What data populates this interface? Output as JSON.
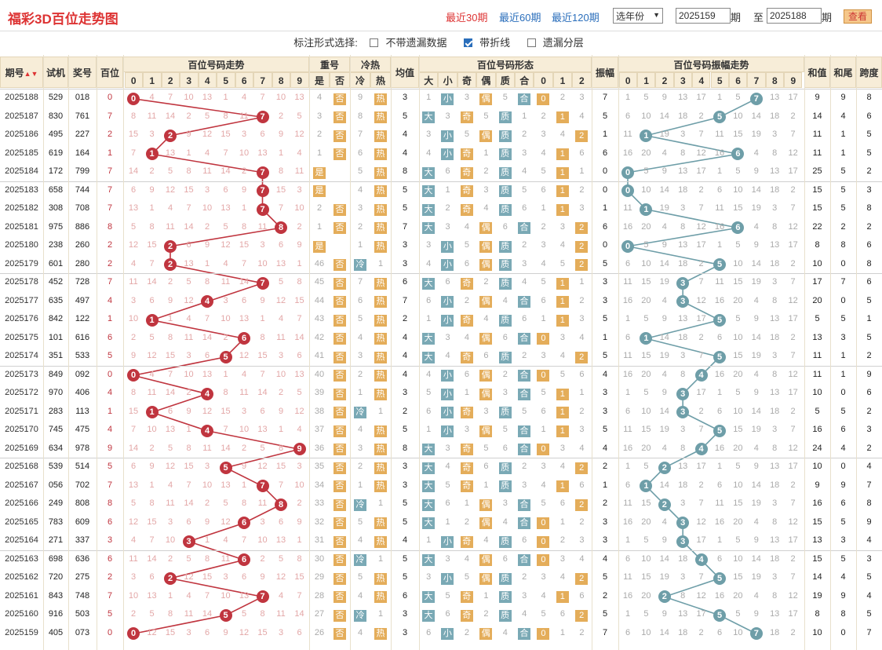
{
  "header": {
    "title": "福彩3D百位走势图",
    "links": [
      "最近30期",
      "最近60期",
      "最近120期"
    ],
    "year_select": "选年份",
    "from_value": "2025159",
    "qi_label_1": "期",
    "to_label": "至",
    "to_value": "2025188",
    "qi_label_2": "期",
    "view_button": "查看"
  },
  "options": {
    "label": "标注形式选择:",
    "items": [
      {
        "label": "不带遗漏数据",
        "checked": false
      },
      {
        "label": "带折线",
        "checked": true
      },
      {
        "label": "遗漏分层",
        "checked": false
      }
    ]
  },
  "table": {
    "headers": {
      "issue": "期号",
      "sim": "试机",
      "prize": "奖号",
      "hundred": "百位",
      "trend": "百位号码走势",
      "repeat": "重号",
      "repeat_sub": [
        "是",
        "否"
      ],
      "coldhot": "冷热",
      "coldhot_sub": [
        "冷",
        "热"
      ],
      "avg": "均值",
      "form": "百位号码形态",
      "form_sub": [
        "大",
        "小",
        "奇",
        "偶",
        "质",
        "合",
        "0",
        "1",
        "2"
      ],
      "amp": "振幅",
      "amp_trend": "百位号码振幅走势",
      "digits": [
        "0",
        "1",
        "2",
        "3",
        "4",
        "5",
        "6",
        "7",
        "8",
        "9"
      ],
      "sum": "和值",
      "tail": "和尾",
      "span": "跨度"
    },
    "rows": [
      {
        "issue": "2025188",
        "sim": "529",
        "prize": "018",
        "h": 0,
        "rep": "4",
        "cold": "9",
        "avg": "3",
        "big": 0,
        "odd": 0,
        "prime": 0,
        "road": 0,
        "amp": 7,
        "sum": "9",
        "tail": "9",
        "span": "8"
      },
      {
        "issue": "2025187",
        "sim": "830",
        "prize": "761",
        "h": 7,
        "rep": "3",
        "cold": "8",
        "avg": "5",
        "big": 1,
        "odd": 1,
        "prime": 1,
        "road": 1,
        "amp": 5,
        "sum": "14",
        "tail": "4",
        "span": "6"
      },
      {
        "issue": "2025186",
        "sim": "495",
        "prize": "227",
        "h": 2,
        "rep": "2",
        "cold": "7",
        "avg": "4",
        "big": 0,
        "odd": 0,
        "prime": 1,
        "road": 2,
        "amp": 1,
        "sum": "11",
        "tail": "1",
        "span": "5"
      },
      {
        "issue": "2025185",
        "sim": "619",
        "prize": "164",
        "h": 1,
        "rep": "1",
        "cold": "6",
        "avg": "4",
        "big": 0,
        "odd": 1,
        "prime": 1,
        "road": 1,
        "amp": 6,
        "sum": "11",
        "tail": "1",
        "span": "5"
      },
      {
        "issue": "2025184",
        "sim": "172",
        "prize": "799",
        "h": 7,
        "rep": "是",
        "cold": "5",
        "avg": "8",
        "big": 1,
        "odd": 1,
        "prime": 1,
        "road": 1,
        "amp": 0,
        "sum": "25",
        "tail": "5",
        "span": "2"
      },
      {
        "issue": "2025183",
        "sim": "658",
        "prize": "744",
        "h": 7,
        "rep": "是",
        "cold": "4",
        "avg": "5",
        "big": 1,
        "odd": 1,
        "prime": 1,
        "road": 1,
        "amp": 0,
        "sum": "15",
        "tail": "5",
        "span": "3"
      },
      {
        "issue": "2025182",
        "sim": "308",
        "prize": "708",
        "h": 7,
        "rep": "2",
        "cold": "3",
        "avg": "5",
        "big": 1,
        "odd": 1,
        "prime": 1,
        "road": 1,
        "amp": 1,
        "sum": "15",
        "tail": "5",
        "span": "8"
      },
      {
        "issue": "2025181",
        "sim": "975",
        "prize": "886",
        "h": 8,
        "rep": "1",
        "cold": "2",
        "avg": "7",
        "big": 1,
        "odd": 0,
        "prime": 0,
        "road": 2,
        "amp": 6,
        "sum": "22",
        "tail": "2",
        "span": "2"
      },
      {
        "issue": "2025180",
        "sim": "238",
        "prize": "260",
        "h": 2,
        "rep": "是",
        "cold": "1",
        "avg": "3",
        "big": 0,
        "odd": 0,
        "prime": 1,
        "road": 2,
        "amp": 0,
        "sum": "8",
        "tail": "8",
        "span": "6"
      },
      {
        "issue": "2025179",
        "sim": "601",
        "prize": "280",
        "h": 2,
        "rep": "46",
        "cold": "冷",
        "avg": "3",
        "big": 0,
        "odd": 0,
        "prime": 1,
        "road": 2,
        "amp": 5,
        "sum": "10",
        "tail": "0",
        "span": "8"
      },
      {
        "issue": "2025178",
        "sim": "452",
        "prize": "728",
        "h": 7,
        "rep": "45",
        "cold": "7",
        "avg": "6",
        "big": 1,
        "odd": 1,
        "prime": 1,
        "road": 1,
        "amp": 3,
        "sum": "17",
        "tail": "7",
        "span": "6"
      },
      {
        "issue": "2025177",
        "sim": "635",
        "prize": "497",
        "h": 4,
        "rep": "44",
        "cold": "6",
        "avg": "7",
        "big": 0,
        "odd": 0,
        "prime": 0,
        "road": 1,
        "amp": 3,
        "sum": "20",
        "tail": "0",
        "span": "5"
      },
      {
        "issue": "2025176",
        "sim": "842",
        "prize": "122",
        "h": 1,
        "rep": "43",
        "cold": "5",
        "avg": "2",
        "big": 0,
        "odd": 1,
        "prime": 1,
        "road": 1,
        "amp": 5,
        "sum": "5",
        "tail": "5",
        "span": "1"
      },
      {
        "issue": "2025175",
        "sim": "101",
        "prize": "616",
        "h": 6,
        "rep": "42",
        "cold": "4",
        "avg": "4",
        "big": 1,
        "odd": 0,
        "prime": 0,
        "road": 0,
        "amp": 1,
        "sum": "13",
        "tail": "3",
        "span": "5"
      },
      {
        "issue": "2025174",
        "sim": "351",
        "prize": "533",
        "h": 5,
        "rep": "41",
        "cold": "3",
        "avg": "4",
        "big": 1,
        "odd": 1,
        "prime": 1,
        "road": 2,
        "amp": 5,
        "sum": "11",
        "tail": "1",
        "span": "2"
      },
      {
        "issue": "2025173",
        "sim": "849",
        "prize": "092",
        "h": 0,
        "rep": "40",
        "cold": "2",
        "avg": "4",
        "big": 0,
        "odd": 0,
        "prime": 0,
        "road": 0,
        "amp": 4,
        "sum": "11",
        "tail": "1",
        "span": "9"
      },
      {
        "issue": "2025172",
        "sim": "970",
        "prize": "406",
        "h": 4,
        "rep": "39",
        "cold": "1",
        "avg": "3",
        "big": 0,
        "odd": 0,
        "prime": 0,
        "road": 1,
        "amp": 3,
        "sum": "10",
        "tail": "0",
        "span": "6"
      },
      {
        "issue": "2025171",
        "sim": "283",
        "prize": "113",
        "h": 1,
        "rep": "38",
        "cold": "冷",
        "avg": "2",
        "big": 0,
        "odd": 1,
        "prime": 1,
        "road": 1,
        "amp": 3,
        "sum": "5",
        "tail": "5",
        "span": "2"
      },
      {
        "issue": "2025170",
        "sim": "745",
        "prize": "475",
        "h": 4,
        "rep": "37",
        "cold": "4",
        "avg": "5",
        "big": 0,
        "odd": 0,
        "prime": 0,
        "road": 1,
        "amp": 5,
        "sum": "16",
        "tail": "6",
        "span": "3"
      },
      {
        "issue": "2025169",
        "sim": "634",
        "prize": "978",
        "h": 9,
        "rep": "36",
        "cold": "3",
        "avg": "8",
        "big": 1,
        "odd": 1,
        "prime": 0,
        "road": 0,
        "amp": 4,
        "sum": "24",
        "tail": "4",
        "span": "2"
      },
      {
        "issue": "2025168",
        "sim": "539",
        "prize": "514",
        "h": 5,
        "rep": "35",
        "cold": "2",
        "avg": "3",
        "big": 1,
        "odd": 1,
        "prime": 1,
        "road": 2,
        "amp": 2,
        "sum": "10",
        "tail": "0",
        "span": "4"
      },
      {
        "issue": "2025167",
        "sim": "056",
        "prize": "702",
        "h": 7,
        "rep": "34",
        "cold": "1",
        "avg": "3",
        "big": 1,
        "odd": 1,
        "prime": 1,
        "road": 1,
        "amp": 1,
        "sum": "9",
        "tail": "9",
        "span": "7"
      },
      {
        "issue": "2025166",
        "sim": "249",
        "prize": "808",
        "h": 8,
        "rep": "33",
        "cold": "冷",
        "avg": "5",
        "big": 1,
        "odd": 0,
        "prime": 0,
        "road": 2,
        "amp": 2,
        "sum": "16",
        "tail": "6",
        "span": "8"
      },
      {
        "issue": "2025165",
        "sim": "783",
        "prize": "609",
        "h": 6,
        "rep": "32",
        "cold": "5",
        "avg": "5",
        "big": 1,
        "odd": 0,
        "prime": 0,
        "road": 0,
        "amp": 3,
        "sum": "15",
        "tail": "5",
        "span": "9"
      },
      {
        "issue": "2025164",
        "sim": "271",
        "prize": "337",
        "h": 3,
        "rep": "31",
        "cold": "4",
        "avg": "4",
        "big": 0,
        "odd": 1,
        "prime": 1,
        "road": 0,
        "amp": 3,
        "sum": "13",
        "tail": "3",
        "span": "4"
      },
      {
        "issue": "2025163",
        "sim": "698",
        "prize": "636",
        "h": 6,
        "rep": "30",
        "cold": "冷",
        "avg": "5",
        "big": 1,
        "odd": 0,
        "prime": 0,
        "road": 0,
        "amp": 4,
        "sum": "15",
        "tail": "5",
        "span": "3"
      },
      {
        "issue": "2025162",
        "sim": "720",
        "prize": "275",
        "h": 2,
        "rep": "29",
        "cold": "5",
        "avg": "5",
        "big": 0,
        "odd": 0,
        "prime": 1,
        "road": 2,
        "amp": 5,
        "sum": "14",
        "tail": "4",
        "span": "5"
      },
      {
        "issue": "2025161",
        "sim": "843",
        "prize": "748",
        "h": 7,
        "rep": "28",
        "cold": "4",
        "avg": "6",
        "big": 1,
        "odd": 1,
        "prime": 1,
        "road": 1,
        "amp": 2,
        "sum": "19",
        "tail": "9",
        "span": "4"
      },
      {
        "issue": "2025160",
        "sim": "916",
        "prize": "503",
        "h": 5,
        "rep": "27",
        "cold": "冷",
        "avg": "3",
        "big": 1,
        "odd": 1,
        "prime": 1,
        "road": 2,
        "amp": 5,
        "sum": "8",
        "tail": "8",
        "span": "5"
      },
      {
        "issue": "2025159",
        "sim": "405",
        "prize": "073",
        "h": 0,
        "rep": "26",
        "cold": "4",
        "avg": "3",
        "big": 0,
        "odd": 0,
        "prime": 0,
        "road": 0,
        "amp": 7,
        "sum": "10",
        "tail": "0",
        "span": "7"
      }
    ]
  },
  "colors": {
    "accent": "#d33333",
    "ball": "#c0353f",
    "amp_ball": "#6e9ea8",
    "tag_orange": "#e4ad5a",
    "tag_teal": "#7aa9b5",
    "header_bg": "#f7edd8"
  }
}
